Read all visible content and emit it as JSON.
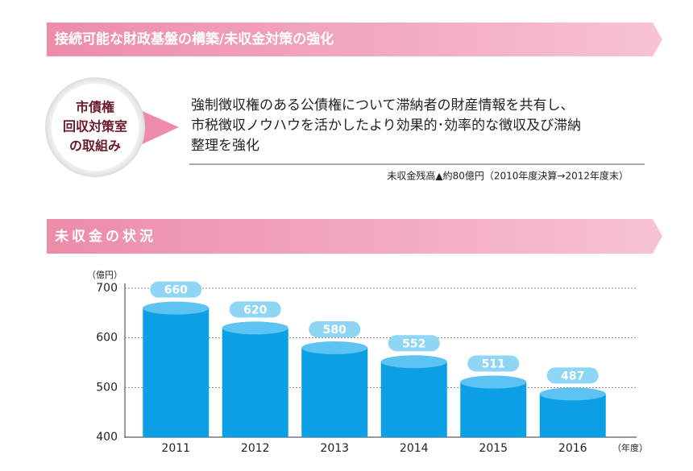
{
  "header1": "接続可能な財政基盤の構築/未収金対策の強化",
  "box": {
    "badge_lines": [
      "市債権",
      "回収対策室",
      "の取組み"
    ],
    "text_lines": [
      "強制徴収権のある公債権について滞納者の財産情報を共有し、",
      "市税徴収ノウハウを活かしたより効果的･効率的な徴収及び滞納",
      "整理を強化"
    ],
    "note": "未収金残高▲約80億円（2010年度決算→2012年度末）"
  },
  "chart_data": {
    "type": "bar",
    "title": "未収金の状況",
    "y_unit_label": "（億円）",
    "x_unit_label": "（年度）",
    "categories": [
      "2011",
      "2012",
      "2013",
      "2014",
      "2015",
      "2016"
    ],
    "values": [
      660,
      620,
      580,
      552,
      511,
      487
    ],
    "color": "#0ba0e6",
    "ylim": [
      400,
      700
    ],
    "yticks": [
      400,
      500,
      600,
      700
    ],
    "grid": true
  }
}
